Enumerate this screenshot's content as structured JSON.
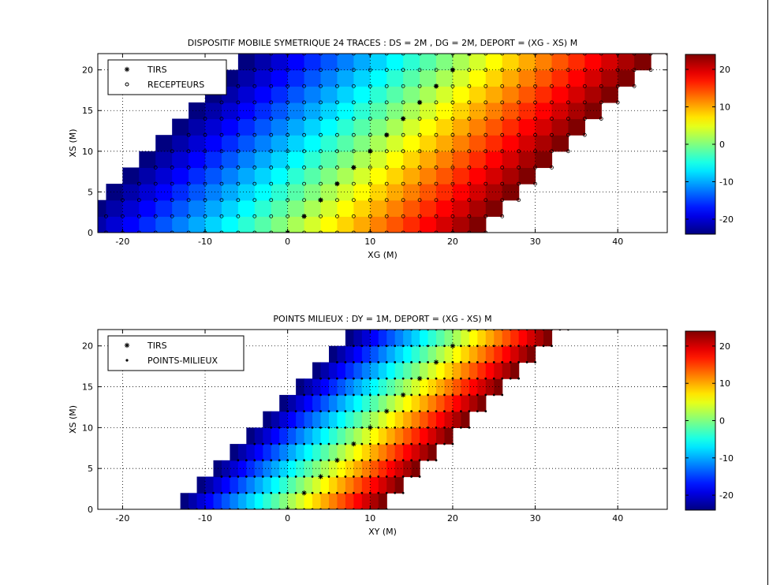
{
  "chart_data": [
    {
      "type": "heatmap",
      "title": "DISPOSITIF MOBILE SYMETRIQUE 24 TRACES : DS = 2M , DG = 2M, DEPORT = (XG - XS) M",
      "xlabel": "XG (M)",
      "ylabel": "XS (M)",
      "xlim": [
        -23,
        46
      ],
      "ylim": [
        0,
        22
      ],
      "xticks": [
        -20,
        -10,
        0,
        10,
        20,
        30,
        40
      ],
      "yticks": [
        0,
        5,
        10,
        15,
        20
      ],
      "grid": true,
      "legend_position": "top-left",
      "legend": [
        "TIRS",
        "RECEPTEURS"
      ],
      "colormap": "jet",
      "color_value": "XG - XS",
      "clim": [
        -24,
        24
      ],
      "colorbar_ticks": [
        -20,
        -10,
        0,
        10,
        20
      ],
      "shots": {
        "name": "TIRS",
        "marker": "asterisk",
        "x": [
          0,
          2,
          4,
          6,
          8,
          10,
          12,
          14,
          16,
          18,
          20,
          22
        ],
        "y": [
          0,
          2,
          4,
          6,
          8,
          10,
          12,
          14,
          16,
          18,
          20,
          22
        ]
      },
      "receivers": {
        "name": "RECEPTEURS",
        "marker": "circle",
        "spacing": 2,
        "rule": "for each shot XS, receivers at XG = XS-24 ... XS+24 step 2",
        "xs": [
          0,
          2,
          4,
          6,
          8,
          10,
          12,
          14,
          16,
          18,
          20,
          22
        ],
        "offset_min": -24,
        "offset_max": 24
      }
    },
    {
      "type": "heatmap",
      "title": "POINTS MILIEUX : DY = 1M, DEPORT = (XG - XS) M",
      "xlabel": "XY (M)",
      "ylabel": "XS (M)",
      "xlim": [
        -23,
        46
      ],
      "ylim": [
        0,
        22
      ],
      "xticks": [
        -20,
        -10,
        0,
        10,
        20,
        30,
        40
      ],
      "yticks": [
        0,
        5,
        10,
        15,
        20
      ],
      "grid": true,
      "legend_position": "top-left",
      "legend": [
        "TIRS",
        "POINTS-MILIEUX"
      ],
      "colormap": "jet",
      "color_value": "XG - XS",
      "clim": [
        -24,
        24
      ],
      "colorbar_ticks": [
        -20,
        -10,
        0,
        10,
        20
      ],
      "shots": {
        "name": "TIRS",
        "marker": "asterisk",
        "x": [
          0,
          2,
          4,
          6,
          8,
          10,
          12,
          14,
          16,
          18,
          20,
          22
        ],
        "y": [
          0,
          2,
          4,
          6,
          8,
          10,
          12,
          14,
          16,
          18,
          20,
          22
        ]
      },
      "midpoints": {
        "name": "POINTS-MILIEUX",
        "marker": "dot",
        "spacing": 1,
        "rule": "for each shot XS, midpoints at XY = XS-12 ... XS+12 step 1",
        "xs": [
          0,
          2,
          4,
          6,
          8,
          10,
          12,
          14,
          16,
          18,
          20,
          22
        ],
        "half_offset_min": -12,
        "half_offset_max": 12
      }
    }
  ]
}
